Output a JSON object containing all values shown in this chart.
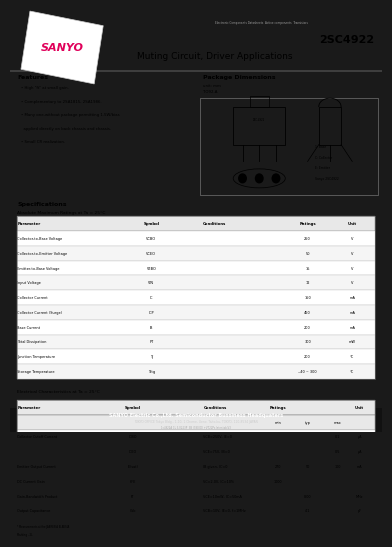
{
  "outer_bg": "#1a1a1a",
  "page_bg": "#ffffff",
  "title_part": "2SC4922",
  "title_app": "Muting Circuit, Driver Applications",
  "header_small": "Electronic Components Datasheets  Active components  Transistors",
  "abs_max_title": "Absolute Maximum Ratings at Ta = 25°C",
  "abs_max_rows": [
    [
      "Collector-to-Base Voltage",
      "VCBO",
      "",
      "250",
      "V"
    ],
    [
      "Collector-to-Emitter Voltage",
      "VCEO",
      "",
      "50",
      "V"
    ],
    [
      "Emitter-to-Base Voltage",
      "VEBO",
      "",
      "15",
      "V"
    ],
    [
      "Input Voltage",
      "VIN",
      "",
      "12",
      "V"
    ],
    [
      "Collector Current",
      "IC",
      "",
      "150",
      "mA"
    ],
    [
      "Collector Current (Surge)",
      "ICP",
      "",
      "450",
      "mA"
    ],
    [
      "Base Current",
      "IB",
      "",
      "200",
      "mA"
    ],
    [
      "Total Dissipation",
      "PT",
      "",
      "300",
      "mW"
    ],
    [
      "Junction Temperature",
      "Tj",
      "",
      "200",
      "°C"
    ],
    [
      "Storage Temperature",
      "Tstg",
      "",
      "‒40 ~ 300",
      "°C"
    ]
  ],
  "elec_title": "Electrical Characteristics at Ta = 25°C",
  "elec_rows": [
    [
      "Collector Cutoff Current",
      "ICBO",
      "VCB=250V, IE=0",
      "",
      "",
      "0.1",
      "μA"
    ],
    [
      "",
      "ICEO",
      "VCE=75V, IB=0",
      "",
      "",
      "0.5",
      "μA"
    ],
    [
      "Emitter Output Current",
      "IE(sat)",
      "IB given, IC=0",
      "270",
      "50",
      "100",
      "mA"
    ],
    [
      "DC Current Gain",
      "hFE",
      "VC=2.0V, IC=10%",
      "1000",
      "",
      "",
      ""
    ],
    [
      "Gain-Bandwidth Product",
      "fT",
      "VCE=10mW, IC=50mA",
      "",
      "8.00",
      "",
      "MHz"
    ],
    [
      "Output Capacitance",
      "Cob",
      "VCB=10V, IE=0, f=1MHz",
      "",
      "4.1",
      "",
      "pF"
    ]
  ],
  "footer1": "SANYO Electric Co.,Ltd. Semiconductor Bussiness Headquaters",
  "footer2": "TOKYO OFFICE Tokyo Bldg., 1-10, 1 Chome, Ueno, Taito-ku, TOKYO, 110-8534 JAPAN",
  "footer3": "1c4922A CL 3-V223P  3B (780 ID) +V722Ps Inter-tab-V3",
  "feat_lines": [
    "• High \"ft\" at small gain.",
    "• Complementary to 2SA1815, 2SA1986.",
    "• Many one-without package permitting 1.5W/bias",
    "  applied directly on back chassis and chassis.",
    "• Small CR realization."
  ]
}
